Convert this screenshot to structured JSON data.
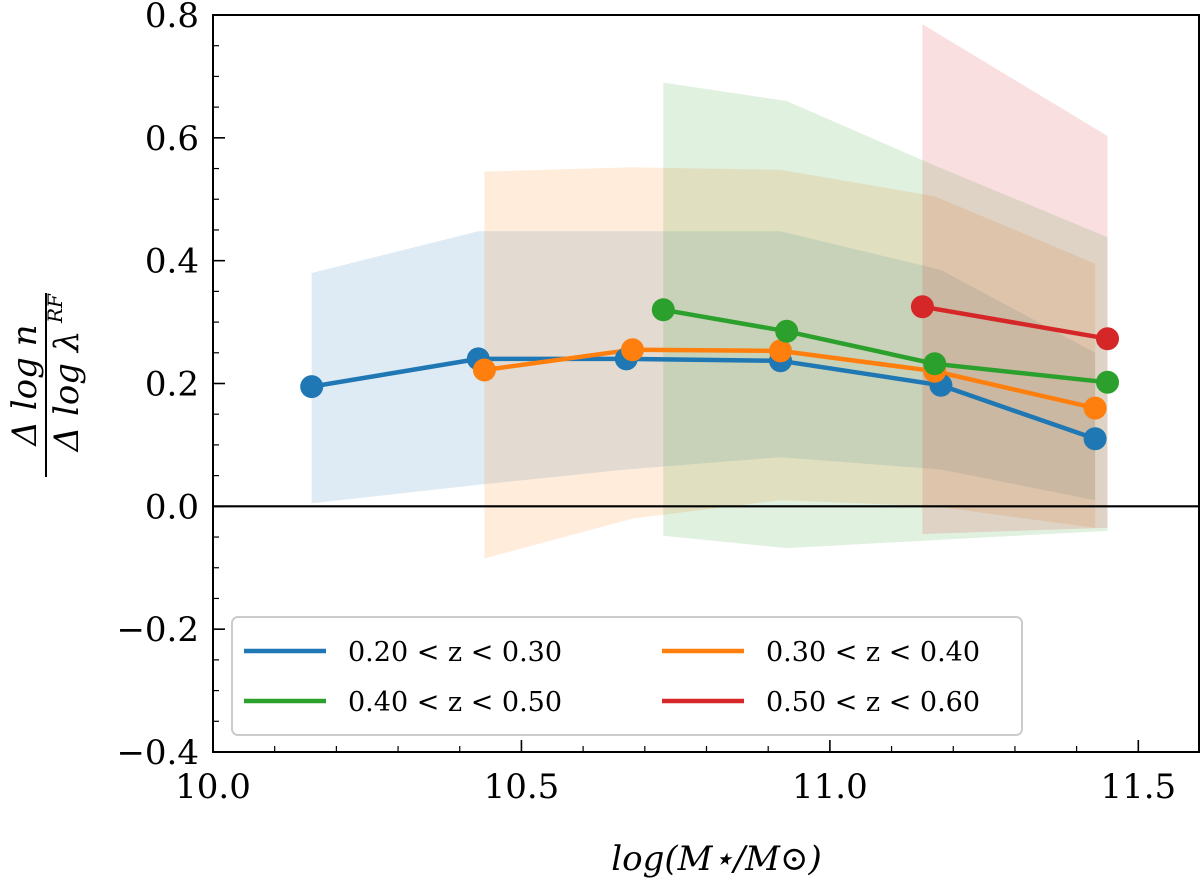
{
  "chart_data": {
    "type": "line",
    "title": "",
    "xlabel": "log(M⋆/M⊙)",
    "ylabel": {
      "numerator": "Δ log n",
      "denominator": "Δ log λ",
      "superscript": "RF"
    },
    "xlim": [
      10.0,
      11.6
    ],
    "ylim": [
      -0.4,
      0.8
    ],
    "x_ticks": [
      10.0,
      10.5,
      11.0,
      11.5
    ],
    "x_tick_labels": [
      "10.0",
      "10.5",
      "11.0",
      "11.5"
    ],
    "y_ticks": [
      -0.4,
      -0.2,
      0.0,
      0.2,
      0.4,
      0.6,
      0.8
    ],
    "y_tick_labels": [
      "−0.4",
      "−0.2",
      "0.0",
      "0.2",
      "0.4",
      "0.6",
      "0.8"
    ],
    "reference_line_y": 0.0,
    "legend_position": "lower-left",
    "grid": false,
    "series": [
      {
        "name": "0.20 < z < 0.30",
        "color": "#1f77b4",
        "x": [
          10.16,
          10.43,
          10.67,
          10.92,
          11.18,
          11.43
        ],
        "y": [
          0.195,
          0.24,
          0.24,
          0.237,
          0.197,
          0.11
        ],
        "band_lower": [
          0.005,
          0.035,
          0.06,
          0.08,
          0.06,
          0.01
        ],
        "band_upper": [
          0.38,
          0.448,
          0.448,
          0.448,
          0.385,
          0.25
        ]
      },
      {
        "name": "0.30 < z < 0.40",
        "color": "#ff7f0e",
        "x": [
          10.44,
          10.68,
          10.92,
          11.17,
          11.43
        ],
        "y": [
          0.222,
          0.255,
          0.253,
          0.22,
          0.16
        ],
        "band_lower": [
          -0.085,
          -0.02,
          0.01,
          0.0,
          -0.035
        ],
        "band_upper": [
          0.545,
          0.552,
          0.548,
          0.505,
          0.395
        ]
      },
      {
        "name": "0.40 < z < 0.50",
        "color": "#2ca02c",
        "x": [
          10.73,
          10.93,
          11.17,
          11.45
        ],
        "y": [
          0.32,
          0.285,
          0.232,
          0.202
        ],
        "band_lower": [
          -0.048,
          -0.068,
          -0.055,
          -0.04
        ],
        "band_upper": [
          0.69,
          0.66,
          0.555,
          0.438
        ]
      },
      {
        "name": "0.50 < z < 0.60",
        "color": "#d62728",
        "x": [
          11.15,
          11.45
        ],
        "y": [
          0.325,
          0.273
        ],
        "band_lower": [
          -0.045,
          -0.035
        ],
        "band_upper": [
          0.785,
          0.603
        ]
      }
    ]
  }
}
